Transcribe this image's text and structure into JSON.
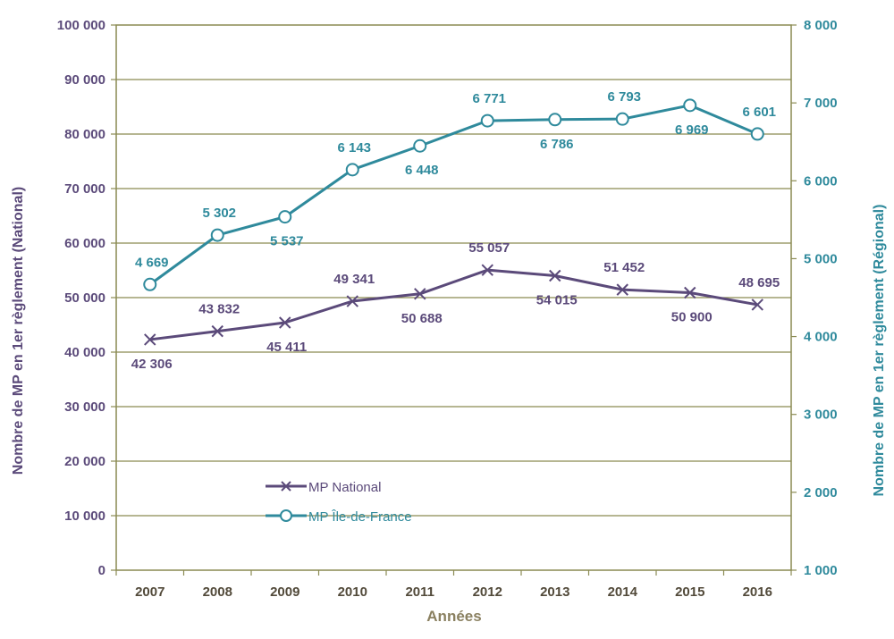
{
  "chart_data": {
    "type": "line",
    "categories": [
      "2007",
      "2008",
      "2009",
      "2010",
      "2011",
      "2012",
      "2013",
      "2014",
      "2015",
      "2016"
    ],
    "series": [
      {
        "name": "MP National",
        "axis": "left",
        "color": "#5b4a7a",
        "marker": "x",
        "values": [
          42306,
          43832,
          45411,
          49341,
          50688,
          55057,
          54015,
          51452,
          50900,
          48695
        ],
        "labels": [
          "42 306",
          "43 832",
          "45 411",
          "49 341",
          "50 688",
          "55 057",
          "54 015",
          "51 452",
          "50 900",
          "48 695"
        ],
        "label_positions": [
          "below",
          "above",
          "below",
          "above",
          "below",
          "above",
          "below",
          "above",
          "below",
          "above"
        ]
      },
      {
        "name": "MP Île-de-France",
        "axis": "right",
        "color": "#2f8a9c",
        "marker": "circle",
        "values": [
          4669,
          5302,
          5537,
          6143,
          6448,
          6771,
          6786,
          6793,
          6969,
          6601
        ],
        "labels": [
          "4 669",
          "5 302",
          "5 537",
          "6 143",
          "6 448",
          "6 771",
          "6 786",
          "6 793",
          "6 969",
          "6 601"
        ],
        "label_positions": [
          "above",
          "above",
          "below",
          "above",
          "below",
          "above",
          "below",
          "above",
          "below",
          "above"
        ]
      }
    ],
    "xlabel": "Années",
    "ylabel_left": "Nombre de MP en 1er règlement (National)",
    "ylabel_right": "Nombre de MP en 1er règlement  (Régional)",
    "ylim_left": [
      0,
      100000
    ],
    "yticks_left": [
      "0",
      "10 000",
      "20 000",
      "30 000",
      "40 000",
      "50 000",
      "60 000",
      "70 000",
      "80 000",
      "90 000",
      "100 000"
    ],
    "ylim_right": [
      1000,
      8000
    ],
    "yticks_right": [
      "1 000",
      "2 000",
      "3 000",
      "4 000",
      "5 000",
      "6 000",
      "7 000",
      "8 000"
    ],
    "grid": true,
    "legend_position": "bottom-left",
    "colors": {
      "axis_frame": "#8a8a52",
      "gridline": "#8a8a52",
      "xlabel": "#8a8060",
      "xtick": "#524a3a"
    }
  }
}
